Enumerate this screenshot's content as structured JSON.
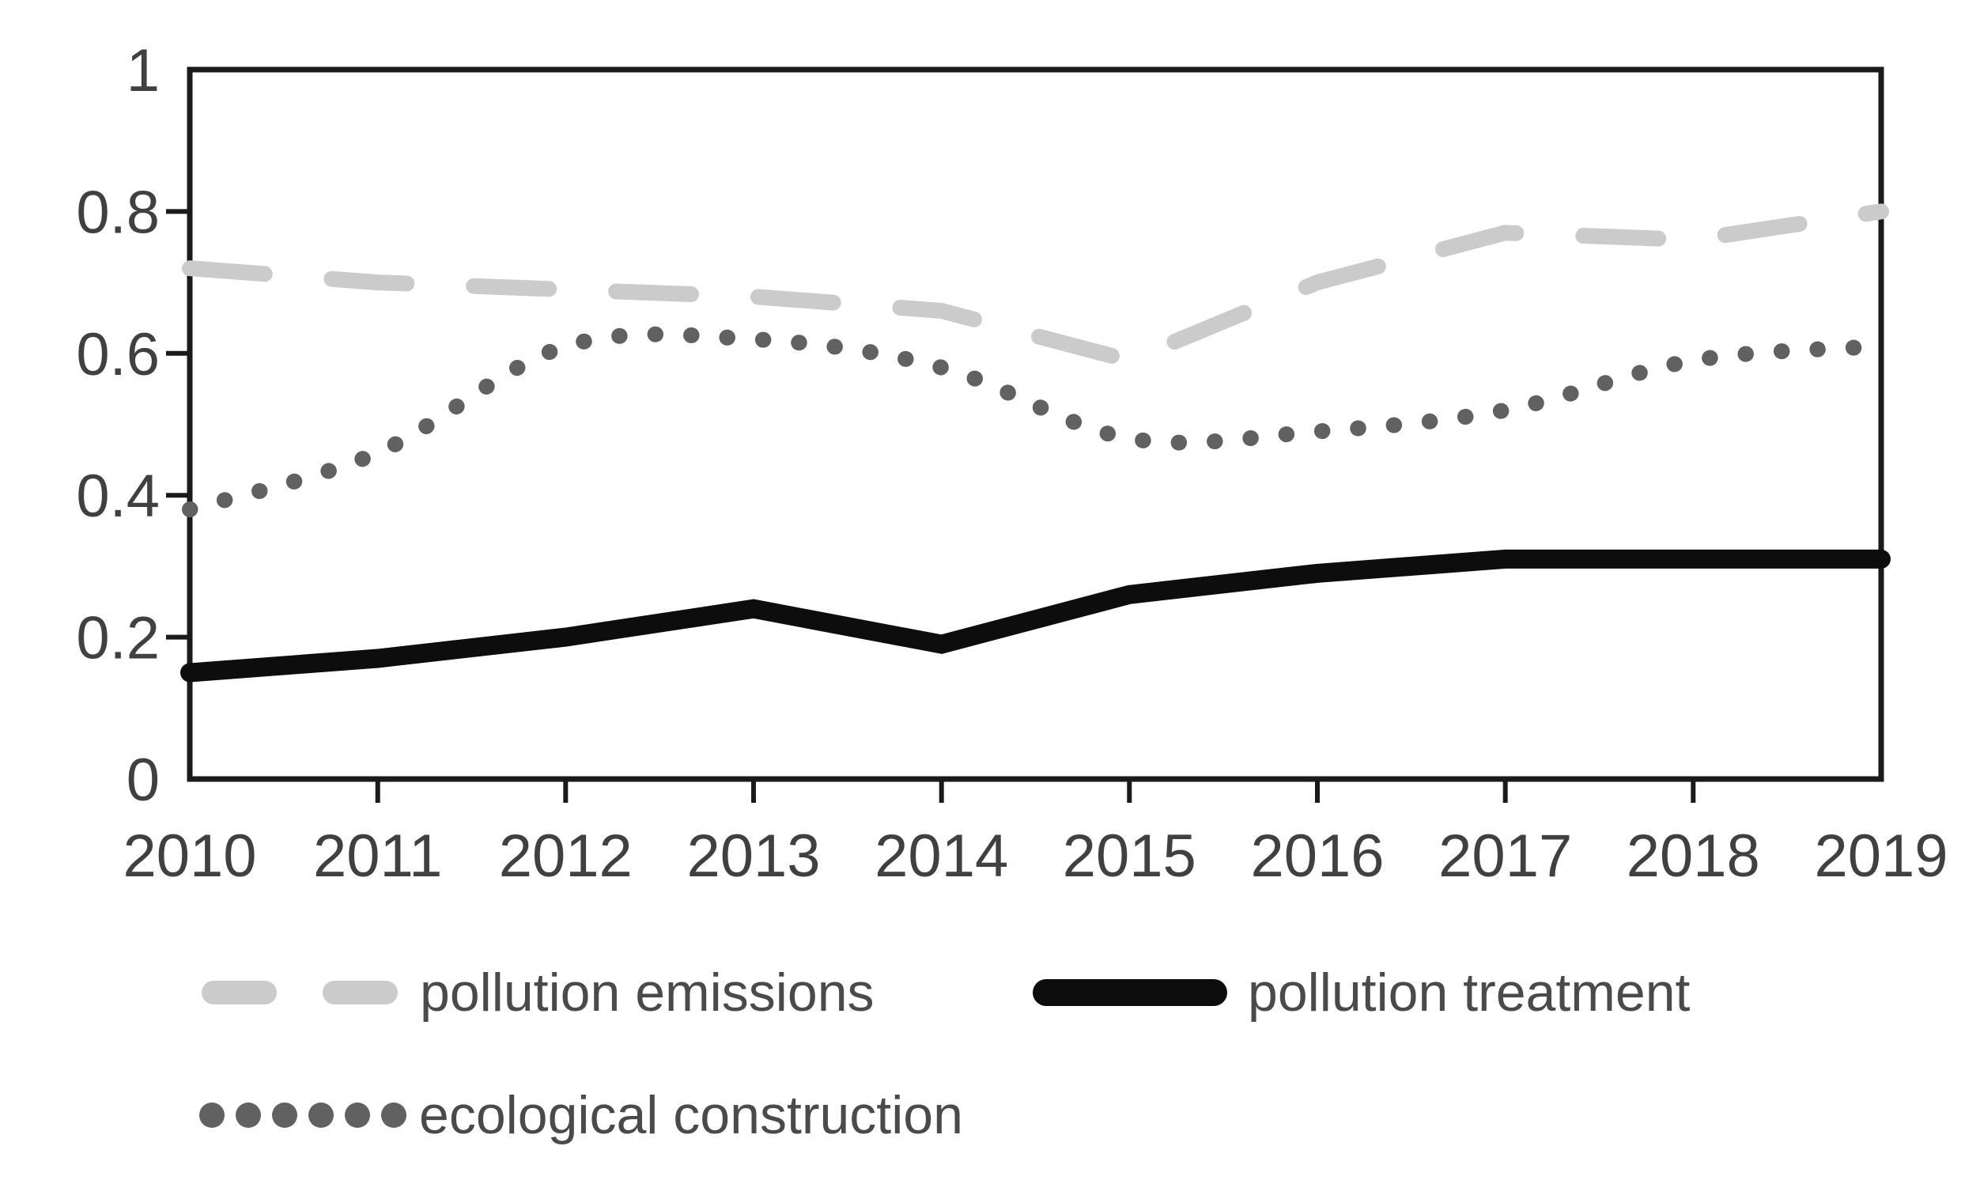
{
  "chart_data": {
    "type": "line",
    "title": "",
    "xlabel": "",
    "ylabel": "",
    "x": [
      2010,
      2011,
      2012,
      2013,
      2014,
      2015,
      2016,
      2017,
      2018,
      2019
    ],
    "xtick_labels": [
      "2010",
      "2011",
      "2012",
      "2013",
      "2014",
      "2015",
      "2016",
      "2017",
      "2018",
      "2019"
    ],
    "ylim": [
      0,
      1
    ],
    "yticks": [
      0,
      0.2,
      0.4,
      0.6,
      0.8,
      1
    ],
    "ytick_labels": [
      "0",
      "0.2",
      "0.4",
      "0.6",
      "0.8",
      "1"
    ],
    "grid": false,
    "legend_position": "bottom-left two rows",
    "axis_color": "#1a1a1a",
    "tick_label_color": "#404040",
    "legend_text_color": "#4a4a4a",
    "background_color": "#ffffff",
    "series": [
      {
        "name": "pollution emissions",
        "style": "dashed",
        "smooth": false,
        "color": "#cbcbcb",
        "values": [
          0.72,
          0.7,
          0.69,
          0.68,
          0.66,
          0.59,
          0.7,
          0.77,
          0.76,
          0.8
        ]
      },
      {
        "name": "pollution treatment",
        "style": "solid",
        "smooth": false,
        "color": "#0d0d0d",
        "values": [
          0.15,
          0.17,
          0.2,
          0.24,
          0.19,
          0.26,
          0.29,
          0.31,
          0.31,
          0.31
        ]
      },
      {
        "name": "ecological construction",
        "style": "dotted",
        "smooth": true,
        "color": "#616161",
        "values": [
          0.38,
          0.46,
          0.61,
          0.62,
          0.58,
          0.48,
          0.49,
          0.52,
          0.59,
          0.61
        ]
      }
    ]
  }
}
